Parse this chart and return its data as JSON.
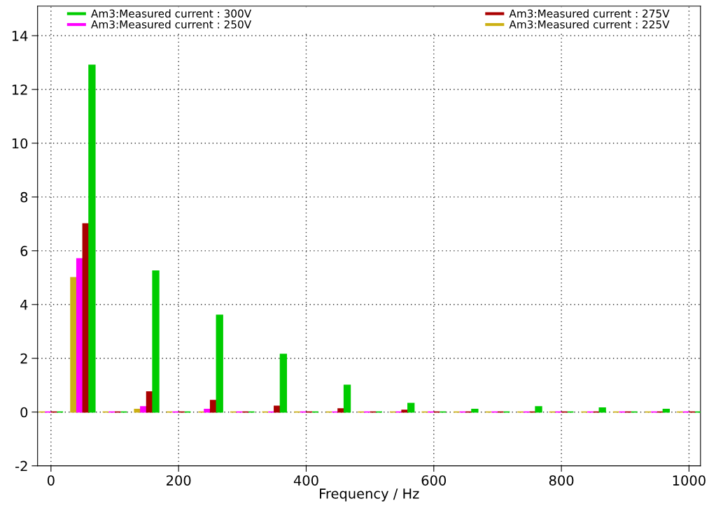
{
  "chart_data": {
    "type": "bar",
    "xlabel": "Frequency / Hz",
    "x": [
      0,
      50,
      100,
      150,
      200,
      250,
      300,
      350,
      400,
      450,
      500,
      550,
      600,
      650,
      700,
      750,
      800,
      850,
      900,
      950,
      1000
    ],
    "series": [
      {
        "name": "Am3:Measured current : 225V",
        "color": "#ccb014",
        "values": [
          0,
          5.0,
          0,
          0.1,
          0,
          0,
          0,
          0,
          0,
          0,
          0,
          0,
          0,
          0,
          0,
          0,
          0,
          0,
          0,
          0,
          0
        ]
      },
      {
        "name": "Am3:Measured current : 250V",
        "color": "#ff00ff",
        "values": [
          0,
          5.7,
          0,
          0.2,
          0,
          0.1,
          0,
          0,
          0,
          0,
          0,
          0,
          0,
          0,
          0,
          0,
          0,
          0,
          0,
          0,
          0
        ]
      },
      {
        "name": "Am3:Measured current : 275V",
        "color": "#aa0000",
        "values": [
          0,
          7.0,
          0,
          0.75,
          0,
          0.43,
          0,
          0.22,
          0,
          0.12,
          0,
          0.07,
          0,
          0,
          0,
          0,
          0,
          0,
          0,
          0,
          0
        ]
      },
      {
        "name": "Am3:Measured current : 300V",
        "color": "#00cc00",
        "values": [
          0,
          12.9,
          0,
          5.25,
          0,
          3.6,
          0,
          2.15,
          0,
          1.0,
          0,
          0.32,
          0,
          0.1,
          0,
          0.2,
          0,
          0.15,
          0,
          0.1,
          0
        ]
      }
    ],
    "xlim": [
      -21,
      1018
    ],
    "ylim": [
      -2,
      15.1
    ],
    "xticks": [
      0,
      200,
      400,
      600,
      800,
      1000
    ],
    "yticks": [
      -2,
      0,
      2,
      4,
      6,
      8,
      10,
      12,
      14
    ],
    "grid": true,
    "legend": "top"
  }
}
